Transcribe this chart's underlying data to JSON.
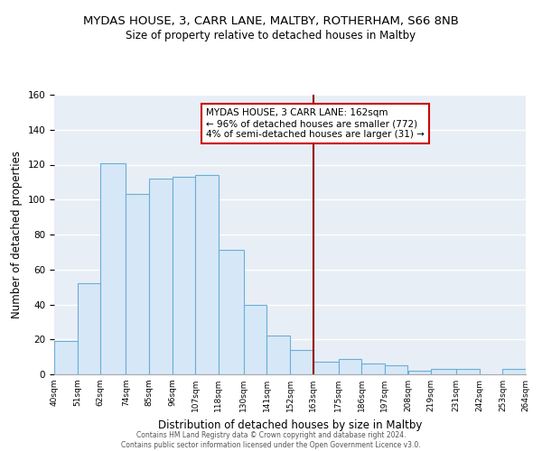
{
  "title": "MYDAS HOUSE, 3, CARR LANE, MALTBY, ROTHERHAM, S66 8NB",
  "subtitle": "Size of property relative to detached houses in Maltby",
  "xlabel": "Distribution of detached houses by size in Maltby",
  "ylabel": "Number of detached properties",
  "bin_edges": [
    40,
    51,
    62,
    74,
    85,
    96,
    107,
    118,
    130,
    141,
    152,
    163,
    175,
    186,
    197,
    208,
    219,
    231,
    242,
    253,
    264
  ],
  "bin_counts": [
    19,
    52,
    121,
    103,
    112,
    113,
    114,
    71,
    40,
    22,
    14,
    7,
    9,
    6,
    5,
    2,
    3,
    3,
    0,
    3
  ],
  "bar_facecolor": "#d6e8f7",
  "bar_edgecolor": "#6aaed6",
  "vline_x": 163,
  "vline_color": "#990000",
  "annotation_title": "MYDAS HOUSE, 3 CARR LANE: 162sqm",
  "annotation_line1": "← 96% of detached houses are smaller (772)",
  "annotation_line2": "4% of semi-detached houses are larger (31) →",
  "annotation_box_edgecolor": "#cc0000",
  "tick_labels": [
    "40sqm",
    "51sqm",
    "62sqm",
    "74sqm",
    "85sqm",
    "96sqm",
    "107sqm",
    "118sqm",
    "130sqm",
    "141sqm",
    "152sqm",
    "163sqm",
    "175sqm",
    "186sqm",
    "197sqm",
    "208sqm",
    "219sqm",
    "231sqm",
    "242sqm",
    "253sqm",
    "264sqm"
  ],
  "ylim": [
    0,
    160
  ],
  "yticks": [
    0,
    20,
    40,
    60,
    80,
    100,
    120,
    140,
    160
  ],
  "grid_color": "#cccccc",
  "background_color": "#e8eef5",
  "footer_line1": "Contains HM Land Registry data © Crown copyright and database right 2024.",
  "footer_line2": "Contains public sector information licensed under the Open Government Licence v3.0."
}
